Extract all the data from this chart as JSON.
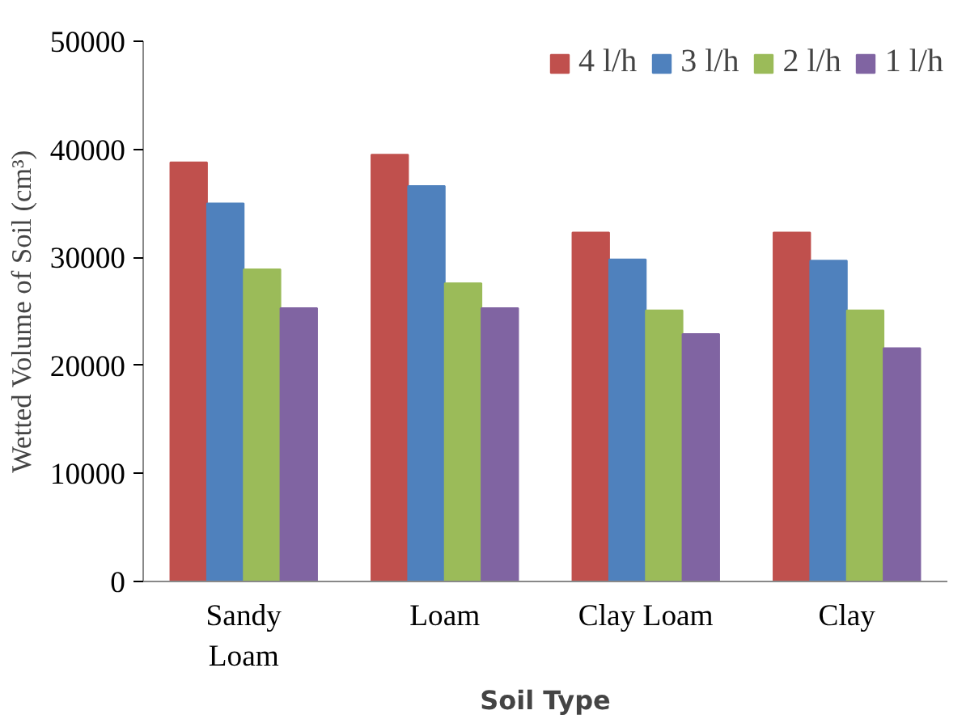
{
  "chart_data": {
    "type": "bar",
    "xlabel": "Soil Type",
    "ylabel": "Wetted Volume of Soil (cm³)",
    "categories": [
      "Sandy Loam",
      "Loam",
      "Clay Loam",
      "Clay"
    ],
    "series": [
      {
        "name": "4 l/h",
        "color": "#c0504d",
        "values": [
          38800,
          39500,
          32300,
          32300
        ]
      },
      {
        "name": "3 l/h",
        "color": "#4f81bd",
        "values": [
          35000,
          36600,
          29800,
          29700
        ]
      },
      {
        "name": "2 l/h",
        "color": "#9bbb59",
        "values": [
          28900,
          27600,
          25100,
          25100
        ]
      },
      {
        "name": "1 l/h",
        "color": "#8064a2",
        "values": [
          25300,
          25300,
          22900,
          21600
        ]
      }
    ],
    "ylim": [
      0,
      50000
    ],
    "yticks": [
      0,
      10000,
      20000,
      30000,
      40000,
      50000
    ],
    "grid": false,
    "legend": "top right"
  }
}
